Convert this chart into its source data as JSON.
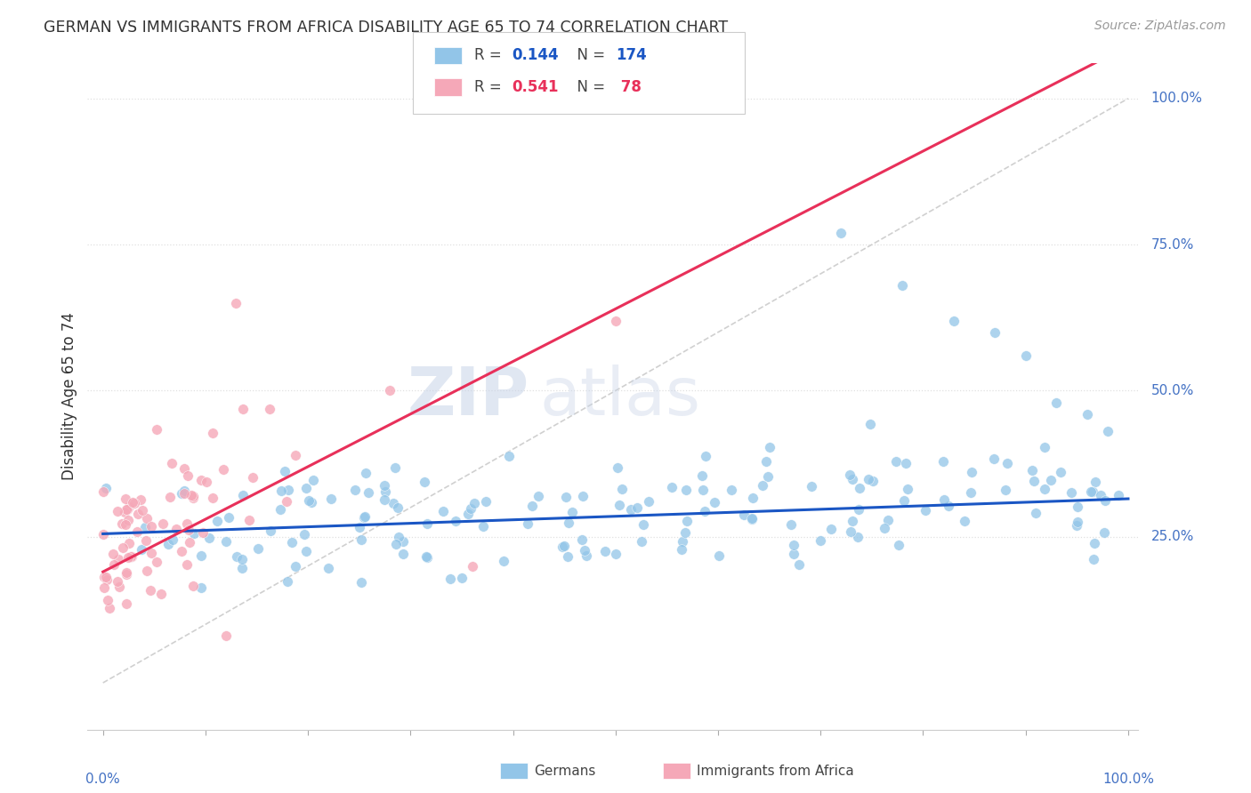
{
  "title": "GERMAN VS IMMIGRANTS FROM AFRICA DISABILITY AGE 65 TO 74 CORRELATION CHART",
  "source": "Source: ZipAtlas.com",
  "ylabel": "Disability Age 65 to 74",
  "watermark_zip": "ZIP",
  "watermark_atlas": "atlas",
  "blue_color": "#92C5E8",
  "pink_color": "#F5A8B8",
  "blue_line_color": "#1A56C4",
  "pink_line_color": "#E8305A",
  "diag_color": "#D0D0D0",
  "background_color": "#FFFFFF",
  "grid_color": "#E0E0E0",
  "blue_r": 0.144,
  "pink_r": 0.541,
  "blue_n": 174,
  "pink_n": 78,
  "ytick_vals": [
    0.25,
    0.5,
    0.75,
    1.0
  ],
  "ytick_labels": [
    "25.0%",
    "50.0%",
    "75.0%",
    "100.0%"
  ],
  "axis_label_color": "#4472C4",
  "title_color": "#333333",
  "source_color": "#999999",
  "legend_text_color": "#444444"
}
